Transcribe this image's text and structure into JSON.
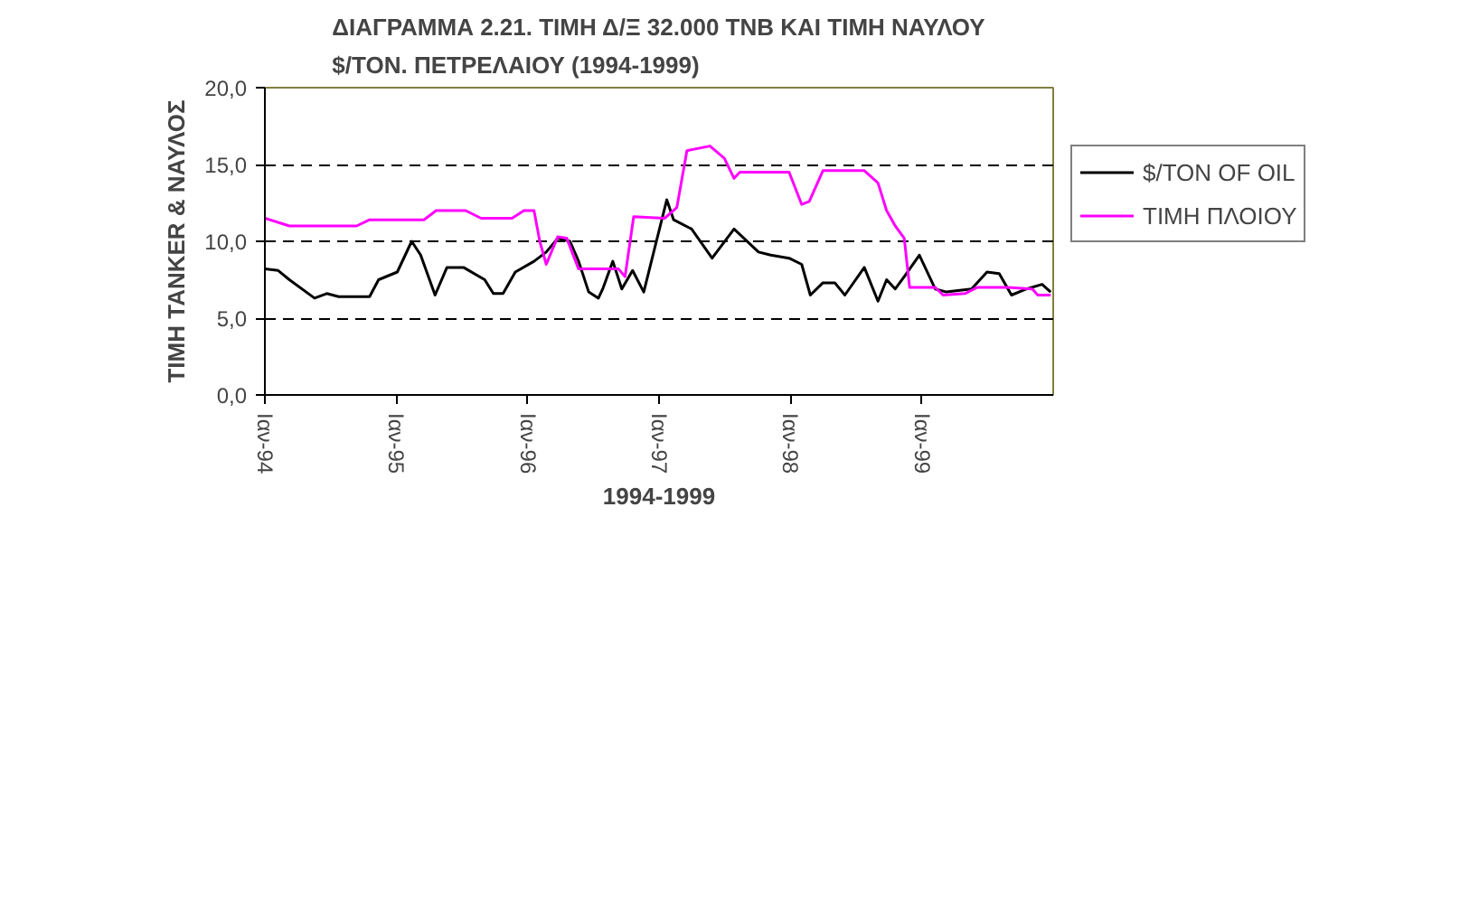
{
  "chart_data": {
    "type": "line",
    "title": "ΔΙΑΓΡΑΜΜΑ 2.21. ΤΙΜΗ Δ/Ξ 32.000 TNB ΚΑΙ ΤΙΜΗ ΝΑΥΛΟΥ\n$/ΤΟΝ. ΠΕΤΡΕΛΑΙΟΥ (1994-1999)",
    "xlabel": "1994-1999",
    "ylabel": "ΤΙΜΗ TANKER & ΝΑΥΛΟΣ",
    "series": [
      {
        "name": "$/TON OF OIL",
        "color": "#000000",
        "x": [
          "1994-01-01",
          "1994-02-07",
          "1994-03-10",
          "1994-05-19",
          "1994-06-22",
          "1994-07-25",
          "1994-10-19",
          "1994-11-13",
          "1995-01-04",
          "1995-02-13",
          "1995-03-10",
          "1995-04-19",
          "1995-05-22",
          "1995-07-07",
          "1995-09-04",
          "1995-09-28",
          "1995-10-25",
          "1995-11-28",
          "1996-01-19",
          "1996-02-22",
          "1996-03-25",
          "1996-04-28",
          "1996-05-22",
          "1996-06-19",
          "1996-07-16",
          "1996-07-28",
          "1996-08-25",
          "1996-09-19",
          "1996-10-19",
          "1996-11-19",
          "1996-12-22",
          "1997-01-22",
          "1997-02-10",
          "1997-04-01",
          "1997-05-28",
          "1997-07-28",
          "1997-10-04",
          "1997-11-07",
          "1997-12-28",
          "1998-02-01",
          "1998-02-25",
          "1998-04-01",
          "1998-05-04",
          "1998-06-01",
          "1998-07-25",
          "1998-09-01",
          "1998-09-25",
          "1998-10-19",
          "1998-11-13",
          "1998-12-25",
          "1999-02-07",
          "1999-03-10",
          "1999-05-19",
          "1999-07-01",
          "1999-08-04",
          "1999-09-07",
          "1999-10-19",
          "1999-12-01",
          "1999-12-25"
        ],
        "values": [
          8.2,
          8.1,
          7.5,
          6.3,
          6.6,
          6.4,
          6.4,
          7.5,
          8.0,
          10.0,
          9.1,
          6.5,
          8.3,
          8.3,
          7.5,
          6.6,
          6.6,
          8.0,
          8.7,
          9.3,
          10.2,
          10.0,
          8.7,
          6.7,
          6.3,
          6.9,
          8.7,
          6.9,
          8.1,
          6.7,
          9.8,
          12.7,
          11.4,
          10.8,
          8.9,
          10.8,
          9.3,
          9.1,
          8.9,
          8.5,
          6.5,
          7.3,
          7.3,
          6.5,
          8.3,
          6.1,
          7.5,
          6.9,
          7.7,
          9.1,
          6.9,
          6.7,
          6.9,
          8.0,
          7.9,
          6.5,
          6.9,
          7.2,
          6.7
        ]
      },
      {
        "name": "ΤΙΜΗ ΠΛΟΙΟΥ",
        "color": "#ff00ff",
        "x": [
          "1994-01-01",
          "1994-03-10",
          "1994-09-13",
          "1994-10-19",
          "1995-03-19",
          "1995-04-22",
          "1995-07-13",
          "1995-08-25",
          "1995-11-19",
          "1995-12-22",
          "1996-01-19",
          "1996-02-04",
          "1996-02-22",
          "1996-03-25",
          "1996-04-19",
          "1996-05-22",
          "1996-09-10",
          "1996-09-28",
          "1996-10-22",
          "1997-01-16",
          "1997-02-19",
          "1997-03-19",
          "1997-05-22",
          "1997-07-01",
          "1997-07-28",
          "1997-08-13",
          "1997-12-28",
          "1998-02-01",
          "1998-02-22",
          "1998-04-01",
          "1998-07-25",
          "1998-09-01",
          "1998-09-25",
          "1998-10-19",
          "1998-11-13",
          "1998-11-28",
          "1999-02-07",
          "1999-03-01",
          "1999-05-01",
          "1999-06-04",
          "1999-08-28",
          "1999-11-04",
          "1999-11-19",
          "1999-12-25"
        ],
        "values": [
          11.5,
          11.0,
          11.0,
          11.4,
          11.4,
          12.0,
          12.0,
          11.5,
          11.5,
          12.0,
          12.0,
          10.0,
          8.5,
          10.3,
          10.2,
          8.2,
          8.2,
          7.7,
          11.6,
          11.5,
          12.2,
          15.9,
          16.2,
          15.4,
          14.1,
          14.5,
          14.5,
          12.4,
          12.6,
          14.6,
          14.6,
          13.8,
          12.0,
          11.0,
          10.2,
          7.0,
          7.0,
          6.5,
          6.6,
          7.0,
          7.0,
          6.9,
          6.5,
          6.5
        ]
      }
    ],
    "xlim": [
      "1994-01",
      "2000-01"
    ],
    "xticks": [
      {
        "value": "1994-01",
        "label": "Ιαν-94"
      },
      {
        "value": "1995-01",
        "label": "Ιαν-95"
      },
      {
        "value": "1996-01",
        "label": "Ιαν-96"
      },
      {
        "value": "1997-01",
        "label": "Ιαν-97"
      },
      {
        "value": "1998-01",
        "label": "Ιαν-98"
      },
      {
        "value": "1999-01",
        "label": "Ιαν-99"
      }
    ],
    "ylim": [
      0,
      20
    ],
    "yticks": [
      {
        "value": 0,
        "label": "0,0"
      },
      {
        "value": 5,
        "label": "5,0"
      },
      {
        "value": 10,
        "label": "10,0"
      },
      {
        "value": 15,
        "label": "15,0"
      },
      {
        "value": 20,
        "label": "20,0"
      }
    ],
    "grid": "y",
    "legend": "right",
    "line_style": "solid",
    "marker": "none"
  }
}
